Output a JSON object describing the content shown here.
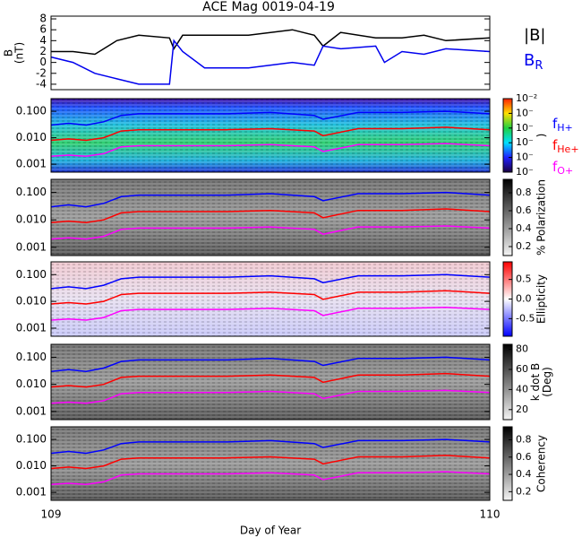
{
  "chart_data": [
    {
      "type": "line",
      "title": "ACE Mag 0019-04-19",
      "y_label": [
        "B",
        "(nT)"
      ],
      "xlim": [
        109,
        110
      ],
      "ylim": [
        -5,
        8.5
      ],
      "yticks": [
        -4,
        -2,
        0,
        2,
        4,
        6,
        8
      ],
      "x": [
        109,
        109.05,
        109.1,
        109.15,
        109.2,
        109.27,
        109.28,
        109.3,
        109.35,
        109.45,
        109.55,
        109.6,
        109.62,
        109.66,
        109.74,
        109.76,
        109.8,
        109.85,
        109.9,
        110
      ],
      "series": [
        {
          "name": "|B|",
          "color": "#000000",
          "values": [
            2,
            2,
            1.5,
            4,
            5,
            4.5,
            2.5,
            5,
            5,
            5,
            6,
            5,
            3,
            5.5,
            4.5,
            4.5,
            4.5,
            5,
            4,
            4.5
          ]
        },
        {
          "name": "B",
          "subscript": "R",
          "color": "#0000ee",
          "values": [
            1,
            0,
            -2,
            -3,
            -4,
            -4,
            4,
            2,
            -1,
            -1,
            0,
            -0.5,
            3,
            2.5,
            3,
            0,
            2,
            1.5,
            2.5,
            2
          ]
        }
      ]
    },
    {
      "type": "spectrogram",
      "colormap": "rainbow",
      "colorbar_label": [
        ")"
      ],
      "clim": [
        1e-07,
        0.01
      ],
      "cticks": [
        {
          "value": 0.01,
          "label": "10⁻²"
        },
        {
          "value": 0.001,
          "label": "10⁻"
        },
        {
          "value": 0.0001,
          "label": "10⁻"
        },
        {
          "value": 1e-05,
          "label": "10⁻"
        },
        {
          "value": 1e-06,
          "label": "10⁻"
        },
        {
          "value": 1e-07,
          "label": "10⁻"
        }
      ],
      "clog": true,
      "log_scale": true,
      "xlim": [
        109,
        110
      ],
      "ylim": [
        0.0005,
        0.3
      ],
      "yticks": [
        {
          "value": 0.001,
          "label": "0.001"
        },
        {
          "value": 0.01,
          "label": "0.010"
        },
        {
          "value": 0.1,
          "label": "0.100"
        }
      ],
      "x": [
        109,
        109.04,
        109.08,
        109.12,
        109.16,
        109.2,
        109.3,
        109.4,
        109.5,
        109.6,
        109.62,
        109.7,
        109.8,
        109.9,
        110
      ],
      "series": [
        {
          "name": "f",
          "subscript": "H+",
          "color": "#0000ff",
          "values": [
            0.03,
            0.035,
            0.03,
            0.04,
            0.07,
            0.08,
            0.08,
            0.08,
            0.09,
            0.07,
            0.05,
            0.09,
            0.09,
            0.1,
            0.08
          ]
        },
        {
          "name": "f",
          "subscript": "He+",
          "color": "#ff0000",
          "values": [
            0.008,
            0.009,
            0.008,
            0.01,
            0.018,
            0.02,
            0.02,
            0.02,
            0.022,
            0.018,
            0.012,
            0.022,
            0.022,
            0.025,
            0.02
          ]
        },
        {
          "name": "f",
          "subscript": "O+",
          "color": "#ff00ff",
          "values": [
            0.002,
            0.0022,
            0.002,
            0.0025,
            0.0045,
            0.005,
            0.005,
            0.005,
            0.0055,
            0.0045,
            0.003,
            0.0055,
            0.0055,
            0.006,
            0.005
          ]
        }
      ]
    },
    {
      "type": "spectrogram",
      "colormap": "gray",
      "colorbar_label": [
        "% Polarization"
      ],
      "clim": [
        0.1,
        0.95
      ],
      "cticks": [
        0.2,
        0.4,
        0.6,
        0.8
      ],
      "log_scale": true,
      "xlim": [
        109,
        110
      ],
      "ylim": [
        0.0005,
        0.3
      ],
      "yticks": [
        {
          "value": 0.001,
          "label": "0.001"
        },
        {
          "value": 0.01,
          "label": "0.010"
        },
        {
          "value": 0.1,
          "label": "0.100"
        }
      ],
      "x": [
        109,
        109.04,
        109.08,
        109.12,
        109.16,
        109.2,
        109.3,
        109.4,
        109.5,
        109.6,
        109.62,
        109.7,
        109.8,
        109.9,
        110
      ],
      "series": [
        {
          "color": "#0000ff",
          "values": [
            0.03,
            0.035,
            0.03,
            0.04,
            0.07,
            0.08,
            0.08,
            0.08,
            0.09,
            0.07,
            0.05,
            0.09,
            0.09,
            0.1,
            0.08
          ]
        },
        {
          "color": "#ff0000",
          "values": [
            0.008,
            0.009,
            0.008,
            0.01,
            0.018,
            0.02,
            0.02,
            0.02,
            0.022,
            0.018,
            0.012,
            0.022,
            0.022,
            0.025,
            0.02
          ]
        },
        {
          "color": "#ff00ff",
          "values": [
            0.002,
            0.0022,
            0.002,
            0.0025,
            0.0045,
            0.005,
            0.005,
            0.005,
            0.0055,
            0.0045,
            0.003,
            0.0055,
            0.0055,
            0.006,
            0.005
          ]
        }
      ]
    },
    {
      "type": "spectrogram",
      "colormap": "red-blue",
      "colorbar_label": [
        "Ellipticity"
      ],
      "clim": [
        -0.95,
        0.95
      ],
      "cticks": [
        {
          "value": -0.5,
          "label": "-0.5"
        },
        {
          "value": 0,
          "label": "0.0"
        },
        {
          "value": 0.5,
          "label": "0.5"
        }
      ],
      "log_scale": true,
      "xlim": [
        109,
        110
      ],
      "ylim": [
        0.0005,
        0.3
      ],
      "yticks": [
        {
          "value": 0.001,
          "label": "0.001"
        },
        {
          "value": 0.01,
          "label": "0.010"
        },
        {
          "value": 0.1,
          "label": "0.100"
        }
      ],
      "x": [
        109,
        109.04,
        109.08,
        109.12,
        109.16,
        109.2,
        109.3,
        109.4,
        109.5,
        109.6,
        109.62,
        109.7,
        109.8,
        109.9,
        110
      ],
      "series": [
        {
          "color": "#0000ff",
          "values": [
            0.03,
            0.035,
            0.03,
            0.04,
            0.07,
            0.08,
            0.08,
            0.08,
            0.09,
            0.07,
            0.05,
            0.09,
            0.09,
            0.1,
            0.08
          ]
        },
        {
          "color": "#ff0000",
          "values": [
            0.008,
            0.009,
            0.008,
            0.01,
            0.018,
            0.02,
            0.02,
            0.02,
            0.022,
            0.018,
            0.012,
            0.022,
            0.022,
            0.025,
            0.02
          ]
        },
        {
          "color": "#ff00ff",
          "values": [
            0.002,
            0.0022,
            0.002,
            0.0025,
            0.0045,
            0.005,
            0.005,
            0.005,
            0.0055,
            0.0045,
            0.003,
            0.0055,
            0.0055,
            0.006,
            0.005
          ]
        }
      ]
    },
    {
      "type": "spectrogram",
      "colormap": "gray",
      "colorbar_label": [
        "k dot B",
        "(Deg)"
      ],
      "clim": [
        10,
        85
      ],
      "cticks": [
        20,
        40,
        60,
        80
      ],
      "log_scale": true,
      "xlim": [
        109,
        110
      ],
      "ylim": [
        0.0005,
        0.3
      ],
      "yticks": [
        {
          "value": 0.001,
          "label": "0.001"
        },
        {
          "value": 0.01,
          "label": "0.010"
        },
        {
          "value": 0.1,
          "label": "0.100"
        }
      ],
      "x": [
        109,
        109.04,
        109.08,
        109.12,
        109.16,
        109.2,
        109.3,
        109.4,
        109.5,
        109.6,
        109.62,
        109.7,
        109.8,
        109.9,
        110
      ],
      "series": [
        {
          "color": "#0000ff",
          "values": [
            0.03,
            0.035,
            0.03,
            0.04,
            0.07,
            0.08,
            0.08,
            0.08,
            0.09,
            0.07,
            0.05,
            0.09,
            0.09,
            0.1,
            0.08
          ]
        },
        {
          "color": "#ff0000",
          "values": [
            0.008,
            0.009,
            0.008,
            0.01,
            0.018,
            0.02,
            0.02,
            0.02,
            0.022,
            0.018,
            0.012,
            0.022,
            0.022,
            0.025,
            0.02
          ]
        },
        {
          "color": "#ff00ff",
          "values": [
            0.002,
            0.0022,
            0.002,
            0.0025,
            0.0045,
            0.005,
            0.005,
            0.005,
            0.0055,
            0.0045,
            0.003,
            0.0055,
            0.0055,
            0.006,
            0.005
          ]
        }
      ]
    },
    {
      "type": "spectrogram",
      "colormap": "gray",
      "colorbar_label": [
        "Coherency"
      ],
      "clim": [
        0.1,
        0.95
      ],
      "cticks": [
        0.2,
        0.4,
        0.6,
        0.8
      ],
      "log_scale": true,
      "xlim": [
        109,
        110
      ],
      "ylim": [
        0.0005,
        0.3
      ],
      "yticks": [
        {
          "value": 0.001,
          "label": "0.001"
        },
        {
          "value": 0.01,
          "label": "0.010"
        },
        {
          "value": 0.1,
          "label": "0.100"
        }
      ],
      "xticks": [
        109,
        110
      ],
      "x_label": "Day of Year",
      "x": [
        109,
        109.04,
        109.08,
        109.12,
        109.16,
        109.2,
        109.3,
        109.4,
        109.5,
        109.6,
        109.62,
        109.7,
        109.8,
        109.9,
        110
      ],
      "series": [
        {
          "color": "#0000ff",
          "values": [
            0.03,
            0.035,
            0.03,
            0.04,
            0.07,
            0.08,
            0.08,
            0.08,
            0.09,
            0.07,
            0.05,
            0.09,
            0.09,
            0.1,
            0.08
          ]
        },
        {
          "color": "#ff0000",
          "values": [
            0.008,
            0.009,
            0.008,
            0.01,
            0.018,
            0.02,
            0.02,
            0.02,
            0.022,
            0.018,
            0.012,
            0.022,
            0.022,
            0.025,
            0.02
          ]
        },
        {
          "color": "#ff00ff",
          "values": [
            0.002,
            0.0022,
            0.002,
            0.0025,
            0.0045,
            0.005,
            0.005,
            0.005,
            0.0055,
            0.0045,
            0.003,
            0.0055,
            0.0055,
            0.006,
            0.005
          ]
        }
      ]
    }
  ]
}
